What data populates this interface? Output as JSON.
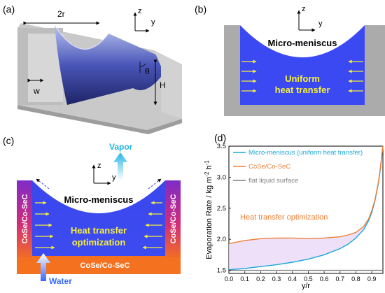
{
  "panels": {
    "a": {
      "label": "(a)",
      "axis_z": "z",
      "axis_y": "y",
      "dim_2r": "2r",
      "dim_w": "w",
      "dim_h": "H",
      "angle": "θ"
    },
    "b": {
      "label": "(b)",
      "axis_z": "z",
      "axis_y": "y",
      "title": "Micro-meniscus",
      "center_line1": "Uniform",
      "center_line2": "heat transfer"
    },
    "c": {
      "label": "(c)",
      "axis_z": "z",
      "axis_y": "y",
      "vapor": "Vapor",
      "meniscus": "Micro-meniscus",
      "center_line1": "Heat transfer",
      "center_line2": "optimization",
      "left_wall": "CoSe/Co-SeC",
      "right_wall": "CoSe/Co-SeC",
      "bottom": "CoSe/Co-SeC",
      "water": "Water"
    },
    "d": {
      "label": "(d)"
    }
  },
  "colors": {
    "blue_liquid": "#3b49f2",
    "cyan_curve": "#1aa7d8",
    "orange_curve": "#f07f35",
    "gray_line": "#7f7f7f",
    "fill_region": "#e8d9f5",
    "annotation": "#f07f35",
    "yellow_text": "#f6ef3c",
    "water_text": "#3b6bff",
    "vapor_text": "#1fb3e0"
  },
  "chart_data": {
    "type": "line",
    "xlabel": "y/r",
    "ylabel": "Evaporation Rate / kg m",
    "ylabel_sup1": "-2",
    "ylabel_mid": " h",
    "ylabel_sup2": "-1",
    "xlim": [
      0,
      0.97
    ],
    "ylim": [
      1.45,
      3.5
    ],
    "x_ticks": [
      0.0,
      0.1,
      0.2,
      0.3,
      0.4,
      0.5,
      0.6,
      0.7,
      0.8,
      0.9
    ],
    "x_tick_labels": [
      "0.0",
      "0.1",
      "0.2",
      "0.3",
      "0.4",
      "0.5",
      "0.6",
      "0.7",
      "0.8",
      "0.9"
    ],
    "y_ticks": [
      1.5,
      2.0,
      2.5,
      3.0,
      3.5
    ],
    "y_tick_labels": [
      "1.5",
      "2.0",
      "2.5",
      "3.0",
      "3.5"
    ],
    "legend": "top-right",
    "annotation": "Heat transfer optimization",
    "series": [
      {
        "name": "Micro-meniscus (uniform heat transfer)",
        "color": "#1aa7d8",
        "x": [
          0.0,
          0.1,
          0.2,
          0.3,
          0.4,
          0.5,
          0.6,
          0.7,
          0.75,
          0.8,
          0.85,
          0.88,
          0.9,
          0.92,
          0.94,
          0.95,
          0.96,
          0.97
        ],
        "y": [
          1.51,
          1.53,
          1.56,
          1.59,
          1.63,
          1.68,
          1.75,
          1.85,
          1.92,
          2.02,
          2.16,
          2.3,
          2.43,
          2.62,
          2.88,
          3.05,
          3.27,
          3.5
        ]
      },
      {
        "name": "CoSe/Co-SeC",
        "color": "#f07f35",
        "x": [
          0.0,
          0.1,
          0.2,
          0.3,
          0.4,
          0.5,
          0.6,
          0.7,
          0.75,
          0.8,
          0.85,
          0.88,
          0.9,
          0.92,
          0.94,
          0.95,
          0.96,
          0.97
        ],
        "y": [
          1.93,
          1.98,
          2.01,
          2.02,
          2.02,
          2.01,
          2.02,
          2.04,
          2.07,
          2.11,
          2.21,
          2.33,
          2.46,
          2.64,
          2.9,
          3.07,
          3.28,
          3.5
        ]
      },
      {
        "name": "flat liquid surface",
        "color": "#7f7f7f",
        "x": [
          0.0,
          0.97
        ],
        "y": [
          1.5,
          1.5
        ]
      }
    ]
  }
}
